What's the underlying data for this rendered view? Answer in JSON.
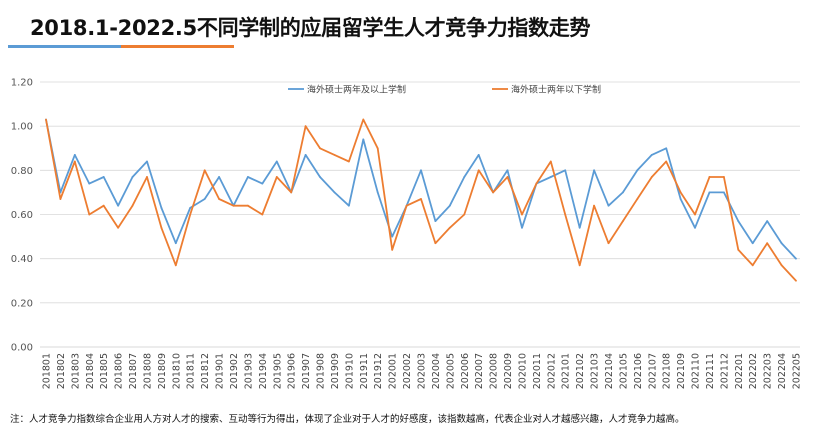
{
  "title": "2018.1-2022.5不同学制的应届留学生人才竞争力指数走势",
  "note": "注：人才竞争力指数综合企业用人方对人才的搜索、互动等行为得出，体现了企业对于人才的好感度，该指数越高，代表企业对人才越感兴趣，人才竞争力越高。",
  "colors": {
    "series_blue": "#5b9bd5",
    "series_orange": "#ed7d31",
    "grid": "#d9d9d9"
  },
  "chart_data": {
    "type": "line",
    "title": "",
    "xlabel": "",
    "ylabel": "",
    "ylim": [
      0,
      1.2
    ],
    "yticks": [
      "0.00",
      "0.20",
      "0.40",
      "0.60",
      "0.80",
      "1.00",
      "1.20"
    ],
    "grid": true,
    "legend": "top",
    "categories": [
      "201801",
      "201802",
      "201803",
      "201804",
      "201805",
      "201806",
      "201807",
      "201808",
      "201809",
      "201810",
      "201811",
      "201812",
      "201901",
      "201902",
      "201903",
      "201904",
      "201905",
      "201906",
      "201907",
      "201908",
      "201909",
      "201910",
      "201911",
      "201912",
      "202001",
      "202002",
      "202003",
      "202004",
      "202005",
      "202006",
      "202007",
      "202008",
      "202009",
      "202010",
      "202011",
      "202012",
      "202101",
      "202102",
      "202103",
      "202104",
      "202105",
      "202106",
      "202107",
      "202108",
      "202109",
      "202110",
      "202111",
      "202112",
      "202201",
      "202202",
      "202203",
      "202204",
      "202205"
    ],
    "series": [
      {
        "name": "海外硕士两年及以上学制",
        "color": "#5b9bd5",
        "values": [
          1.03,
          0.7,
          0.87,
          0.74,
          0.77,
          0.64,
          0.77,
          0.84,
          0.63,
          0.47,
          0.63,
          0.67,
          0.77,
          0.64,
          0.77,
          0.74,
          0.84,
          0.7,
          0.87,
          0.77,
          0.7,
          0.64,
          0.94,
          0.7,
          0.5,
          0.64,
          0.8,
          0.57,
          0.64,
          0.77,
          0.87,
          0.7,
          0.8,
          0.54,
          0.74,
          0.77,
          0.8,
          0.54,
          0.8,
          0.64,
          0.7,
          0.8,
          0.87,
          0.9,
          0.67,
          0.54,
          0.7,
          0.7,
          0.57,
          0.47,
          0.57,
          0.47,
          0.4
        ]
      },
      {
        "name": "海外硕士两年以下学制",
        "color": "#ed7d31",
        "values": [
          1.03,
          0.67,
          0.84,
          0.6,
          0.64,
          0.54,
          0.64,
          0.77,
          0.54,
          0.37,
          0.6,
          0.8,
          0.67,
          0.64,
          0.64,
          0.6,
          0.77,
          0.7,
          1.0,
          0.9,
          0.87,
          0.84,
          1.03,
          0.9,
          0.44,
          0.64,
          0.67,
          0.47,
          0.54,
          0.6,
          0.8,
          0.7,
          0.77,
          0.6,
          0.74,
          0.84,
          0.6,
          0.37,
          0.64,
          0.47,
          0.57,
          0.67,
          0.77,
          0.84,
          0.7,
          0.6,
          0.77,
          0.77,
          0.44,
          0.37,
          0.47,
          0.37,
          0.3
        ]
      }
    ]
  }
}
